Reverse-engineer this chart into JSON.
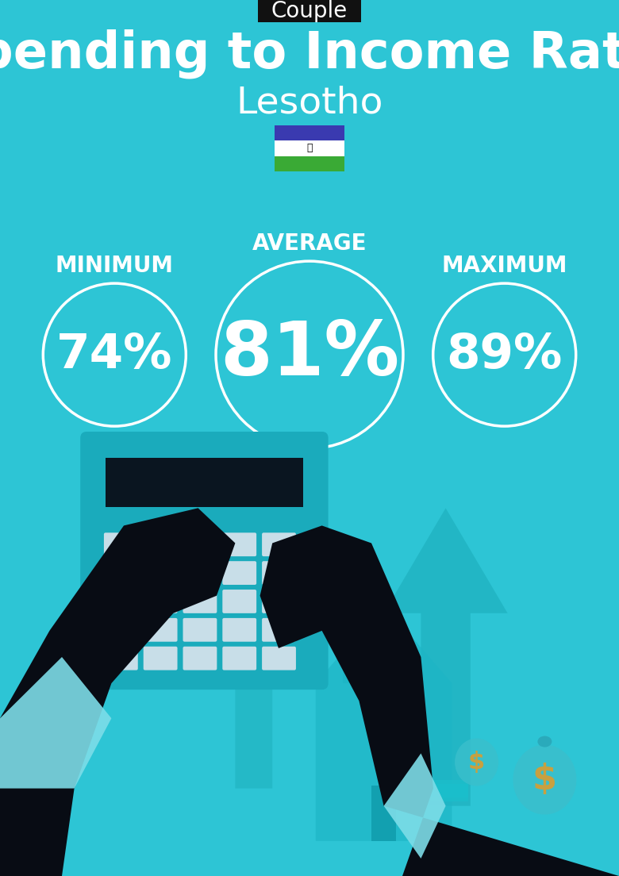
{
  "bg_color": "#2DC5D5",
  "title": "Spending to Income Ratio",
  "subtitle": "Lesotho",
  "tag_text": "Couple",
  "tag_bg": "#111111",
  "tag_text_color": "#ffffff",
  "title_color": "#ffffff",
  "subtitle_color": "#ffffff",
  "min_label": "MINIMUM",
  "avg_label": "AVERAGE",
  "max_label": "MAXIMUM",
  "min_value": "74%",
  "avg_value": "81%",
  "max_value": "89%",
  "label_color": "#ffffff",
  "value_color": "#ffffff",
  "circle_edge_color": "#ffffff",
  "title_fontsize": 46,
  "subtitle_fontsize": 34,
  "tag_fontsize": 20,
  "label_fontsize": 20,
  "min_fontsize": 44,
  "avg_fontsize": 68,
  "max_fontsize": 44,
  "fig_width": 7.8,
  "fig_height": 11.04,
  "dpi": 100
}
